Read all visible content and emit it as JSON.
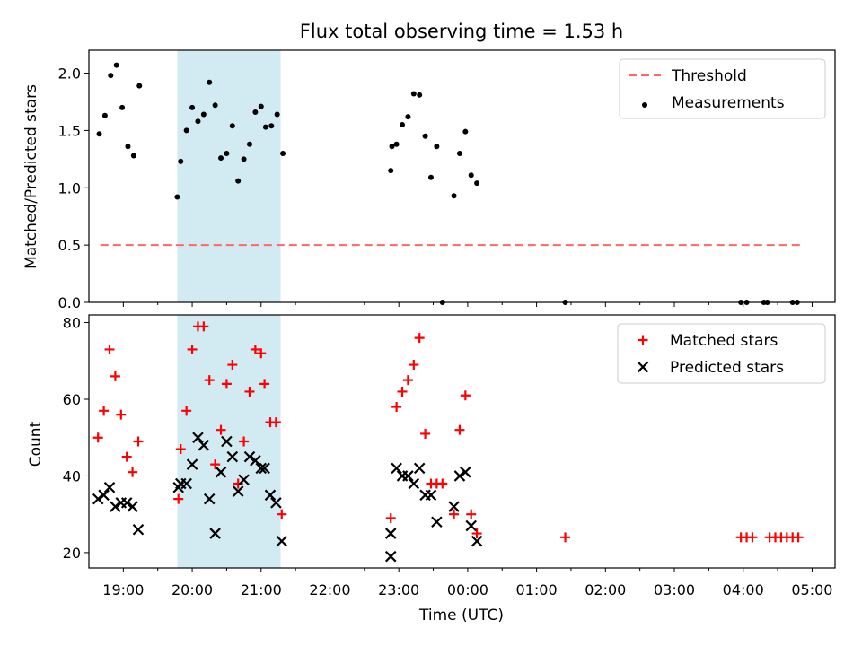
{
  "figure": {
    "title": "Flux total observing time = 1.53 h",
    "xlabel": "Time (UTC)",
    "x_ticks": [
      "19:00",
      "20:00",
      "21:00",
      "22:00",
      "23:00",
      "00:00",
      "01:00",
      "02:00",
      "03:00",
      "04:00",
      "05:00"
    ],
    "shaded_interval": [
      "19:47",
      "21:17"
    ],
    "shade_color": "#add8e6",
    "threshold_color": "#ff6666",
    "matched_color": "#ff0000",
    "predicted_color": "#000000"
  },
  "chart_data": [
    {
      "type": "scatter",
      "panel": "top",
      "title": "Flux total observing time = 1.53 h",
      "xlabel": "",
      "ylabel": "Matched/Predicted stars",
      "xlim": [
        "18:30",
        "05:20"
      ],
      "ylim": [
        0,
        2.2
      ],
      "y_ticks": [
        "0.0",
        "0.5",
        "1.0",
        "1.5",
        "2.0"
      ],
      "legend_position": "top-right",
      "grid": false,
      "legend": [
        {
          "label": "Threshold",
          "marker": "dashed-line"
        },
        {
          "label": "Measurements",
          "marker": "dot"
        }
      ],
      "threshold": {
        "name": "Threshold",
        "y": 0.5,
        "x_range": [
          "18:40",
          "04:50"
        ]
      },
      "series": [
        {
          "name": "Measurements",
          "points": [
            [
              "18:39",
              1.47
            ],
            [
              "18:44",
              1.63
            ],
            [
              "18:49",
              1.98
            ],
            [
              "18:54",
              2.07
            ],
            [
              "18:59",
              1.7
            ],
            [
              "19:04",
              1.36
            ],
            [
              "19:09",
              1.28
            ],
            [
              "19:14",
              1.89
            ],
            [
              "19:47",
              0.92
            ],
            [
              "19:50",
              1.23
            ],
            [
              "19:55",
              1.5
            ],
            [
              "20:00",
              1.7
            ],
            [
              "20:05",
              1.58
            ],
            [
              "20:10",
              1.64
            ],
            [
              "20:15",
              1.92
            ],
            [
              "20:20",
              1.72
            ],
            [
              "20:25",
              1.26
            ],
            [
              "20:30",
              1.3
            ],
            [
              "20:35",
              1.54
            ],
            [
              "20:40",
              1.06
            ],
            [
              "20:45",
              1.25
            ],
            [
              "20:50",
              1.38
            ],
            [
              "20:55",
              1.66
            ],
            [
              "21:00",
              1.71
            ],
            [
              "21:04",
              1.53
            ],
            [
              "21:09",
              1.54
            ],
            [
              "21:14",
              1.64
            ],
            [
              "21:19",
              1.3
            ],
            [
              "22:53",
              1.15
            ],
            [
              "22:54",
              1.36
            ],
            [
              "22:58",
              1.38
            ],
            [
              "23:03",
              1.55
            ],
            [
              "23:08",
              1.62
            ],
            [
              "23:13",
              1.82
            ],
            [
              "23:18",
              1.81
            ],
            [
              "23:23",
              1.45
            ],
            [
              "23:28",
              1.09
            ],
            [
              "23:33",
              1.36
            ],
            [
              "23:38",
              0.0
            ],
            [
              "23:48",
              0.93
            ],
            [
              "23:53",
              1.3
            ],
            [
              "23:58",
              1.49
            ],
            [
              "00:03",
              1.11
            ],
            [
              "00:08",
              1.04
            ],
            [
              "01:25",
              0.0
            ],
            [
              "03:58",
              0.0
            ],
            [
              "04:03",
              0.0
            ],
            [
              "04:18",
              0.0
            ],
            [
              "04:21",
              0.0
            ],
            [
              "04:43",
              0.0
            ],
            [
              "04:47",
              0.0
            ]
          ]
        }
      ]
    },
    {
      "type": "scatter",
      "panel": "bottom",
      "title": "",
      "xlabel": "Time (UTC)",
      "ylabel": "Count",
      "xlim": [
        "18:30",
        "05:20"
      ],
      "ylim": [
        16,
        82
      ],
      "y_ticks": [
        "20",
        "40",
        "60",
        "80"
      ],
      "legend_position": "top-right",
      "grid": false,
      "legend": [
        {
          "label": "Matched stars",
          "marker": "plus"
        },
        {
          "label": "Predicted stars",
          "marker": "x"
        }
      ],
      "series": [
        {
          "name": "Matched stars",
          "points": [
            [
              "18:38",
              50
            ],
            [
              "18:43",
              57
            ],
            [
              "18:48",
              73
            ],
            [
              "18:53",
              66
            ],
            [
              "18:58",
              56
            ],
            [
              "19:03",
              45
            ],
            [
              "19:08",
              41
            ],
            [
              "19:13",
              49
            ],
            [
              "19:48",
              34
            ],
            [
              "19:50",
              47
            ],
            [
              "19:55",
              57
            ],
            [
              "20:00",
              73
            ],
            [
              "20:05",
              79
            ],
            [
              "20:10",
              79
            ],
            [
              "20:15",
              65
            ],
            [
              "20:20",
              43
            ],
            [
              "20:25",
              52
            ],
            [
              "20:30",
              64
            ],
            [
              "20:35",
              69
            ],
            [
              "20:40",
              38
            ],
            [
              "20:45",
              49
            ],
            [
              "20:50",
              62
            ],
            [
              "20:55",
              73
            ],
            [
              "21:00",
              72
            ],
            [
              "21:03",
              64
            ],
            [
              "21:08",
              54
            ],
            [
              "21:13",
              54
            ],
            [
              "21:18",
              30
            ],
            [
              "22:53",
              29
            ],
            [
              "22:58",
              58
            ],
            [
              "23:03",
              62
            ],
            [
              "23:08",
              65
            ],
            [
              "23:13",
              69
            ],
            [
              "23:18",
              76
            ],
            [
              "23:23",
              51
            ],
            [
              "23:28",
              38
            ],
            [
              "23:33",
              38
            ],
            [
              "23:38",
              38
            ],
            [
              "23:48",
              30
            ],
            [
              "23:53",
              52
            ],
            [
              "23:58",
              61
            ],
            [
              "00:03",
              30
            ],
            [
              "00:08",
              25
            ],
            [
              "01:25",
              24
            ],
            [
              "03:58",
              24
            ],
            [
              "04:03",
              24
            ],
            [
              "04:08",
              24
            ],
            [
              "04:23",
              24
            ],
            [
              "04:28",
              24
            ],
            [
              "04:33",
              24
            ],
            [
              "04:38",
              24
            ],
            [
              "04:43",
              24
            ],
            [
              "04:48",
              24
            ]
          ]
        },
        {
          "name": "Predicted stars",
          "points": [
            [
              "18:38",
              34
            ],
            [
              "18:43",
              35
            ],
            [
              "18:48",
              37
            ],
            [
              "18:53",
              32
            ],
            [
              "18:58",
              33
            ],
            [
              "19:03",
              33
            ],
            [
              "19:08",
              32
            ],
            [
              "19:13",
              26
            ],
            [
              "19:48",
              37
            ],
            [
              "19:50",
              38
            ],
            [
              "19:55",
              38
            ],
            [
              "20:00",
              43
            ],
            [
              "20:05",
              50
            ],
            [
              "20:10",
              48
            ],
            [
              "20:15",
              34
            ],
            [
              "20:20",
              25
            ],
            [
              "20:25",
              41
            ],
            [
              "20:30",
              49
            ],
            [
              "20:35",
              45
            ],
            [
              "20:40",
              36
            ],
            [
              "20:45",
              39
            ],
            [
              "20:50",
              45
            ],
            [
              "20:55",
              44
            ],
            [
              "21:00",
              42
            ],
            [
              "21:03",
              42
            ],
            [
              "21:08",
              35
            ],
            [
              "21:13",
              33
            ],
            [
              "21:18",
              23
            ],
            [
              "22:53",
              19
            ],
            [
              "22:53",
              25
            ],
            [
              "22:58",
              42
            ],
            [
              "23:03",
              40
            ],
            [
              "23:08",
              40
            ],
            [
              "23:13",
              38
            ],
            [
              "23:18",
              42
            ],
            [
              "23:23",
              35
            ],
            [
              "23:28",
              35
            ],
            [
              "23:33",
              28
            ],
            [
              "23:48",
              32
            ],
            [
              "23:53",
              40
            ],
            [
              "23:58",
              41
            ],
            [
              "00:03",
              27
            ],
            [
              "00:08",
              23
            ]
          ]
        }
      ]
    }
  ]
}
